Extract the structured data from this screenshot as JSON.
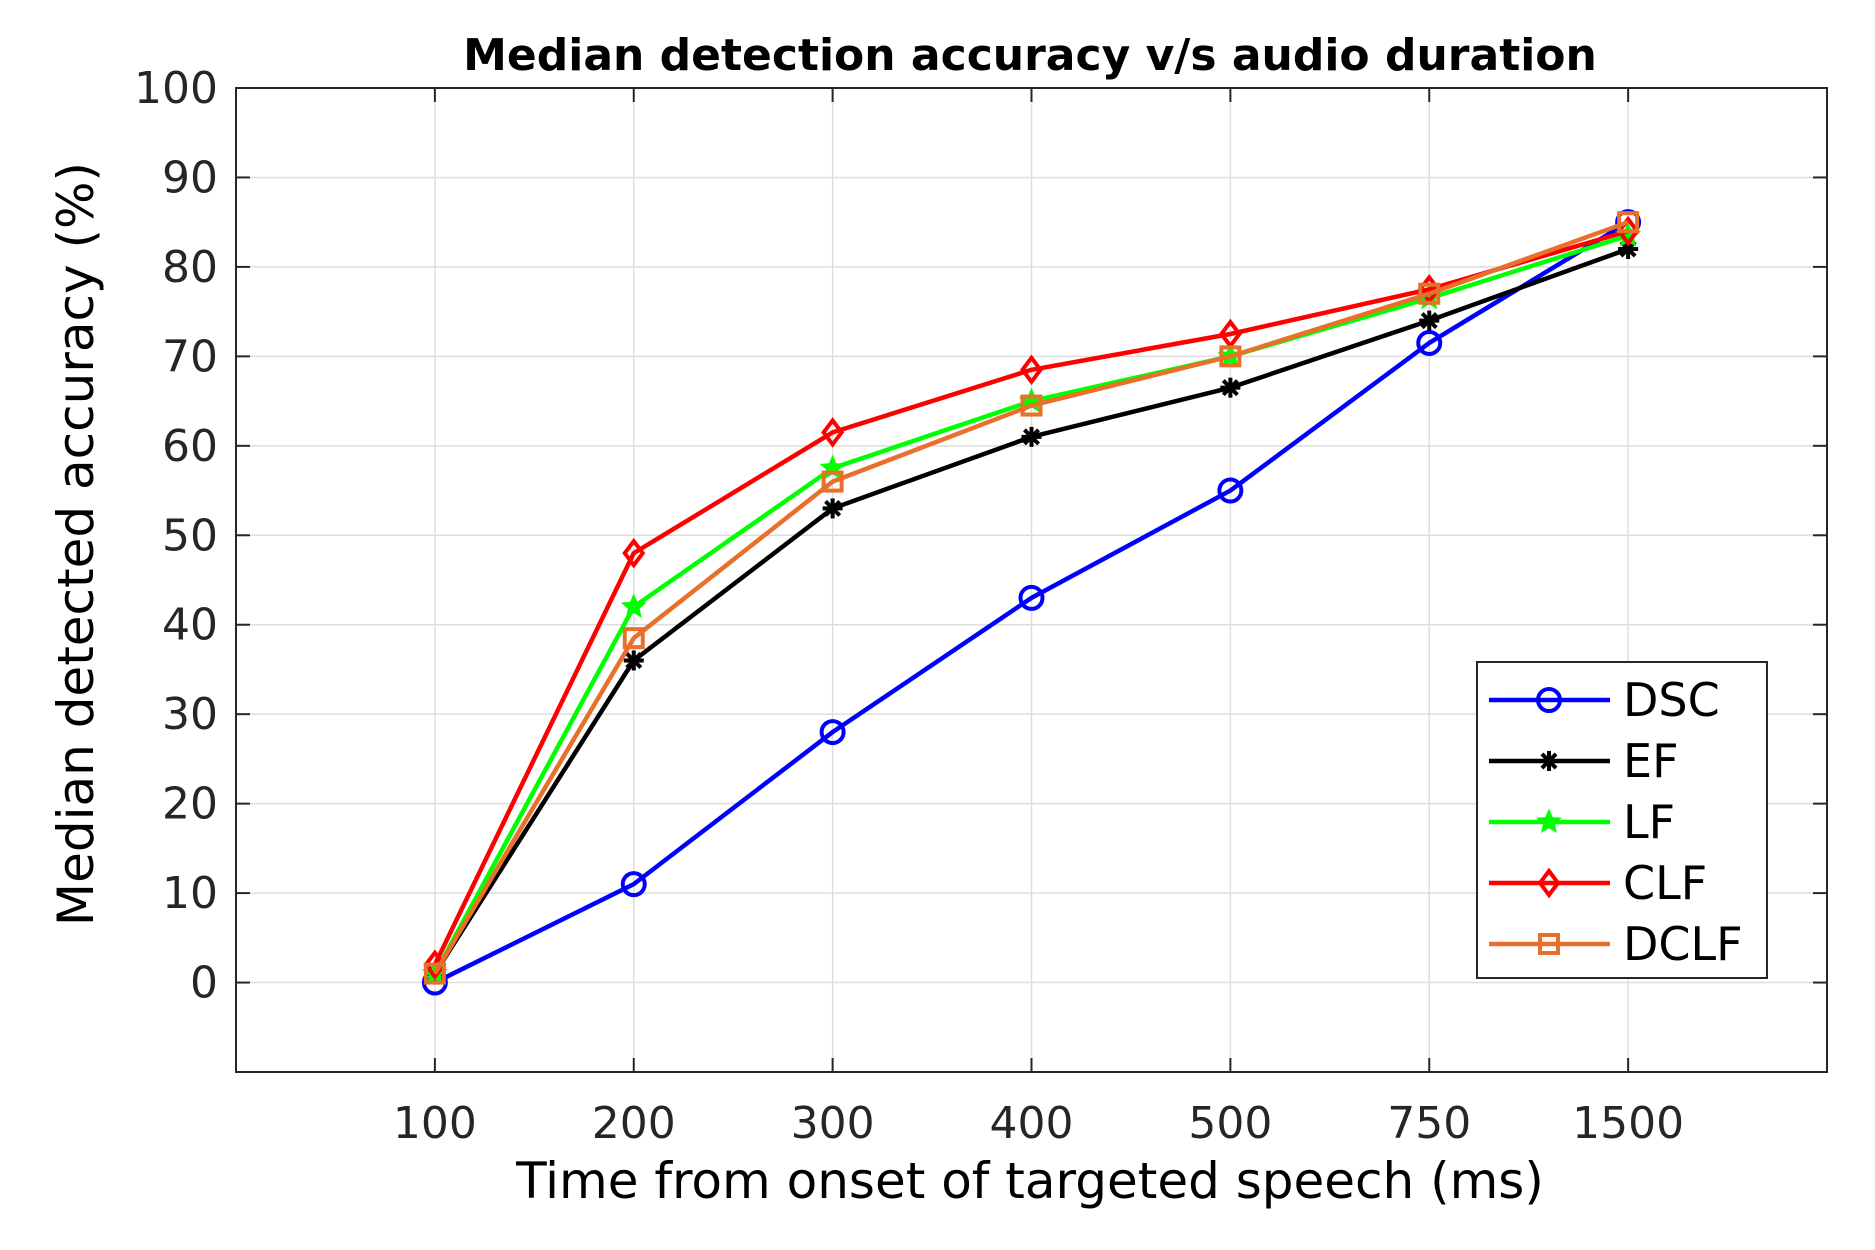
{
  "chart_data": {
    "type": "line",
    "title": "Median detection accuracy v/s audio duration",
    "xlabel": "Time from onset of targeted speech (ms)",
    "ylabel": "Median detected accuracy (%)",
    "categories": [
      "100",
      "200",
      "300",
      "400",
      "500",
      "750",
      "1500"
    ],
    "ylim": [
      -10,
      100
    ],
    "yticks": [
      "0",
      "10",
      "20",
      "30",
      "40",
      "50",
      "60",
      "70",
      "80",
      "90",
      "100"
    ],
    "grid": true,
    "legend_position": "bottom-right",
    "series": [
      {
        "name": "DSC",
        "color": "#0000ff",
        "marker": "circle",
        "values": [
          0,
          11,
          28,
          43,
          55,
          71.5,
          85
        ]
      },
      {
        "name": "EF",
        "color": "#000000",
        "marker": "asterisk",
        "values": [
          1,
          36,
          53,
          61,
          66.5,
          74,
          82
        ]
      },
      {
        "name": "LF",
        "color": "#00ff00",
        "marker": "star",
        "values": [
          1,
          42,
          57.5,
          65,
          70,
          76.5,
          83.5
        ]
      },
      {
        "name": "CLF",
        "color": "#ff0000",
        "marker": "diamond",
        "values": [
          2,
          48,
          61.5,
          68.5,
          72.5,
          77.5,
          84
        ]
      },
      {
        "name": "DCLF",
        "color": "#e8702a",
        "marker": "square",
        "values": [
          1,
          38.5,
          56,
          64.5,
          70,
          77,
          85
        ]
      }
    ]
  }
}
